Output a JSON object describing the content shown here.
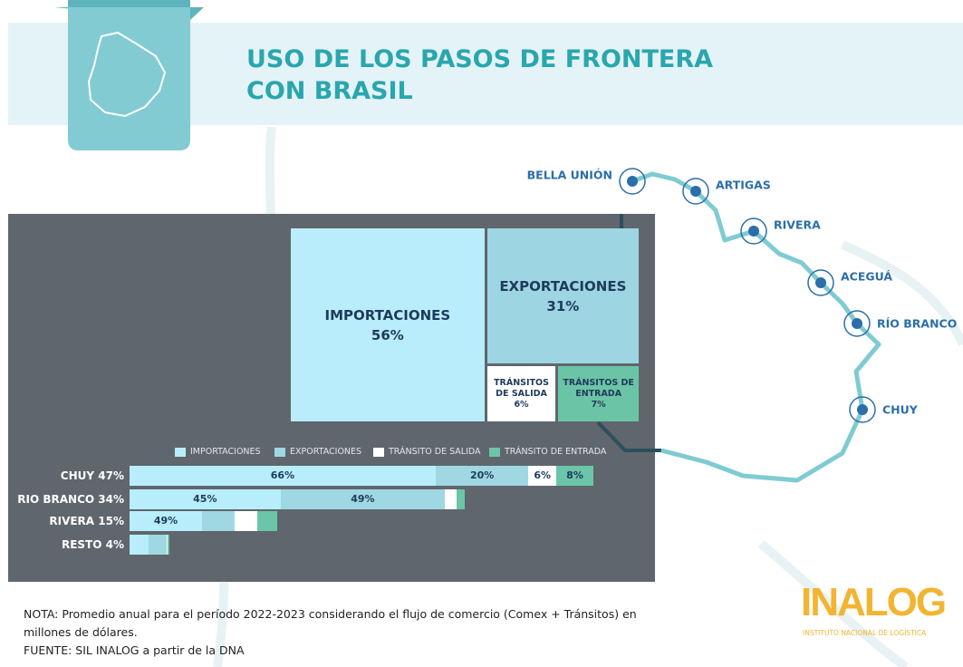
{
  "title_lines": [
    "USO DE LOS PASOS DE FRONTERA",
    "CON BRASIL"
  ],
  "map_labels": [
    "BELLA UNIÓN",
    "ARTIGAS",
    "RIVERA",
    "ACEGUÁ",
    "RÍO BRANCO",
    "CHUY"
  ],
  "chart_data": [
    {
      "type": "treemap",
      "names": [
        "IMPORTACIONES",
        "EXPORTACIONES",
        "TRÁNSITOS DE SALIDA",
        "TRÁNSITOS DE ENTRADA"
      ],
      "values": [
        56,
        31,
        6,
        7
      ],
      "value_labels": [
        "56%",
        "31%",
        "6%",
        "7%"
      ],
      "colors": [
        "#b9edfc",
        "#9dd6e2",
        "#ffffff",
        "#6cc4a6"
      ]
    },
    {
      "type": "bar",
      "categories": [
        "CHUY",
        "RIO BRANCO",
        "RIVERA",
        "RESTO"
      ],
      "shares": [
        47,
        34,
        15,
        4
      ],
      "share_labels": [
        "47%",
        "34%",
        "15%",
        "4%"
      ],
      "series": [
        {
          "name": "IMPORTACIONES",
          "color": "#b8eefb",
          "values": [
            66,
            45,
            49,
            49
          ],
          "value_labels": [
            "66%",
            "45%",
            "49%",
            null
          ]
        },
        {
          "name": "EXPORTACIONES",
          "color": "#9fd8e3",
          "values": [
            20,
            49,
            22,
            46
          ],
          "value_labels": [
            "20%",
            "49%",
            null,
            null
          ]
        },
        {
          "name": "TRÁNSITO DE SALIDA",
          "color": "#ffffff",
          "values": [
            6,
            3.5,
            15,
            1
          ],
          "value_labels": [
            "6%",
            null,
            null,
            null
          ]
        },
        {
          "name": "TRÁNSITO DE ENTRADA",
          "color": "#6cc5a8",
          "values": [
            8,
            2.5,
            14,
            4
          ],
          "value_labels": [
            "8%",
            null,
            null,
            null
          ]
        }
      ]
    }
  ],
  "note_lines": [
    "NOTA: Promedio anual para el período 2022-2023 considerando el flujo de comercio (Comex + Tránsitos) en",
    "millones de dólares."
  ],
  "source": "FUENTE: SIL INALOG a partir de la DNA",
  "logo": {
    "name": "INALOG",
    "subtitle": "INSTITUTO NACIONAL DE LOGÍSTICA"
  }
}
